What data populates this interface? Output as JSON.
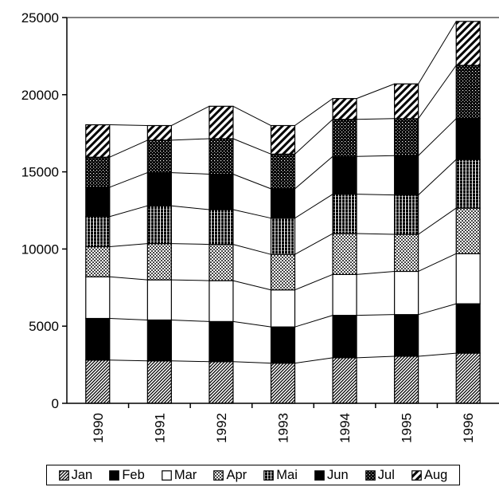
{
  "chart_data": {
    "type": "bar",
    "stacked": true,
    "connector_lines": true,
    "categories": [
      "1990",
      "1991",
      "1992",
      "1993",
      "1994",
      "1995",
      "1996"
    ],
    "series": [
      {
        "name": "Jan",
        "pattern": "diagonal-dense",
        "values": [
          2800,
          2750,
          2700,
          2600,
          2950,
          3050,
          3250
        ]
      },
      {
        "name": "Feb",
        "pattern": "solid-black",
        "values": [
          2700,
          2650,
          2600,
          2350,
          2750,
          2700,
          3200
        ]
      },
      {
        "name": "Mar",
        "pattern": "white",
        "values": [
          2700,
          2600,
          2650,
          2400,
          2650,
          2800,
          3250
        ]
      },
      {
        "name": "Apr",
        "pattern": "crosshatch",
        "values": [
          1950,
          2350,
          2350,
          2300,
          2650,
          2400,
          2950
        ]
      },
      {
        "name": "Mai",
        "pattern": "vertical-stripes",
        "values": [
          1950,
          2450,
          2250,
          2350,
          2550,
          2550,
          3150
        ]
      },
      {
        "name": "Jun",
        "pattern": "solid-black",
        "values": [
          1900,
          2150,
          2300,
          1900,
          2450,
          2550,
          2650
        ]
      },
      {
        "name": "Jul",
        "pattern": "grid-dots",
        "values": [
          1950,
          2100,
          2300,
          2250,
          2400,
          2400,
          3450
        ]
      },
      {
        "name": "Aug",
        "pattern": "diagonal-wide",
        "values": [
          2100,
          950,
          2100,
          1850,
          1350,
          2250,
          2850
        ]
      }
    ],
    "ylim": [
      0,
      25000
    ],
    "yticks": [
      0,
      5000,
      10000,
      15000,
      20000,
      25000
    ],
    "xlabel": "",
    "ylabel": "",
    "title": "",
    "grid": false,
    "legend_position": "bottom"
  }
}
